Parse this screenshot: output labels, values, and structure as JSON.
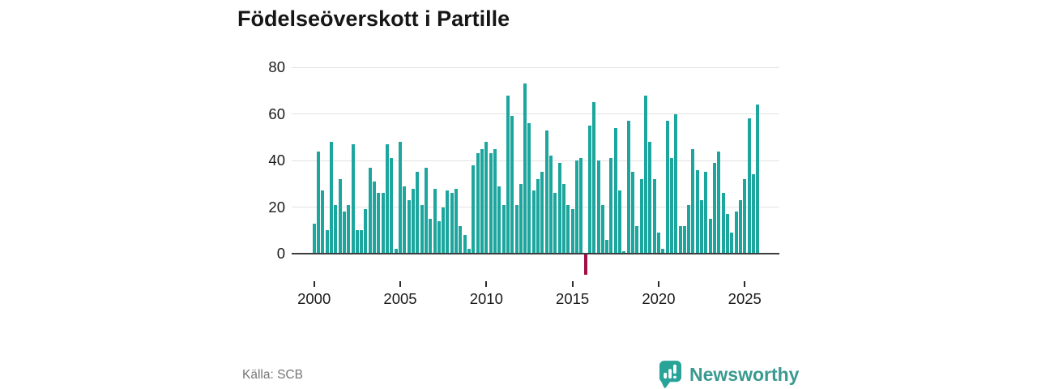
{
  "title": "Födelseöverskott i Partille",
  "source": "Källa: SCB",
  "brand": {
    "name": "Newsworthy"
  },
  "chart_data": {
    "type": "bar",
    "title": "Födelseöverskott i Partille",
    "frequency": "quarterly",
    "start_period": "2000-Q1",
    "end_period": "2025-Q4",
    "series": [
      {
        "name": "Födelseöverskott",
        "values": [
          13,
          44,
          27,
          10,
          48,
          21,
          32,
          18,
          21,
          47,
          10,
          10,
          19,
          37,
          31,
          26,
          26,
          47,
          41,
          2,
          48,
          29,
          23,
          28,
          35,
          21,
          37,
          15,
          28,
          14,
          20,
          27,
          26,
          28,
          12,
          8,
          2,
          38,
          43,
          45,
          48,
          43,
          45,
          29,
          21,
          68,
          59,
          21,
          30,
          73,
          56,
          27,
          32,
          35,
          53,
          42,
          26,
          39,
          30,
          21,
          19,
          40,
          41,
          -9,
          55,
          65,
          40,
          21,
          6,
          41,
          54,
          27,
          1,
          57,
          35,
          12,
          32,
          68,
          48,
          32,
          9,
          2,
          57,
          41,
          60,
          12,
          12,
          21,
          45,
          36,
          23,
          35,
          15,
          39,
          44,
          26,
          17,
          9,
          18,
          23,
          32,
          58,
          34,
          64
        ]
      }
    ],
    "y_ticks": [
      0,
      20,
      40,
      60,
      80
    ],
    "y_tick_labels": [
      "0",
      "20",
      "40",
      "60",
      "80"
    ],
    "x_ticks": [
      2000,
      2005,
      2010,
      2015,
      2020,
      2025
    ],
    "x_tick_labels": [
      "2000",
      "2005",
      "2010",
      "2015",
      "2020",
      "2025"
    ],
    "ylim": [
      -12,
      84
    ],
    "grid": true,
    "legend": "none",
    "colors": {
      "bar": "#1da69e",
      "negative_bar": "#a11048",
      "gridline": "#e2e2e2",
      "zero_line": "#3d3d3d",
      "title_text": "#161616",
      "source_text": "#757575",
      "brand_teal": "#3a9a90"
    }
  }
}
